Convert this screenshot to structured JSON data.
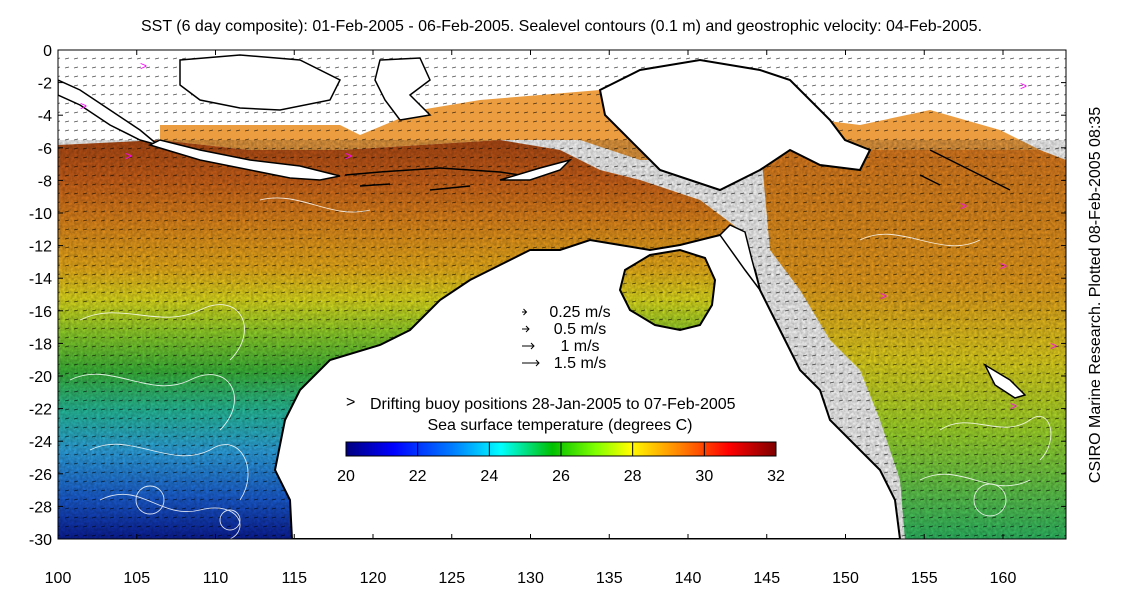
{
  "title": "SST (6 day composite): 01-Feb-2005 - 06-Feb-2005. Sealevel contours (0.1 m) and geostrophic velocity: 04-Feb-2005.",
  "side_credit": "CSIRO Marine Research. Plotted 08-Feb-2005 08:35",
  "map": {
    "lon_range": [
      100,
      164
    ],
    "lat_range": [
      -30,
      0
    ],
    "x_ticks": [
      "100",
      "105",
      "110",
      "115",
      "120",
      "125",
      "130",
      "135",
      "140",
      "145",
      "150",
      "155",
      "160"
    ],
    "y_ticks": [
      "0",
      "-2",
      "-4",
      "-6",
      "-8",
      "-10",
      "-12",
      "-14",
      "-16",
      "-18",
      "-20",
      "-22",
      "-24",
      "-26",
      "-28",
      "-30"
    ]
  },
  "velocity_legend": [
    {
      "label": "0.25 m/s",
      "speed": 0.25
    },
    {
      "label": "0.5 m/s",
      "speed": 0.5
    },
    {
      "label": "1 m/s",
      "speed": 1
    },
    {
      "label": "1.5 m/s",
      "speed": 1.5
    }
  ],
  "buoy_legend": {
    "symbol": ">",
    "label": "Drifting buoy positions 28-Jan-2005 to 07-Feb-2005",
    "color": "#ff00ff"
  },
  "colorbar": {
    "title": "Sea surface temperature (degrees C)",
    "min": 20,
    "max": 32,
    "ticks": [
      "20",
      "22",
      "24",
      "26",
      "28",
      "30",
      "32"
    ],
    "colors": [
      "#00007f",
      "#0000ff",
      "#007fff",
      "#00ffff",
      "#00c000",
      "#7fff00",
      "#ffff00",
      "#ff7f00",
      "#ff0000",
      "#7f0000"
    ]
  },
  "colors": {
    "land": "#ffffff",
    "coast": "#000000",
    "contour": "#ffffff",
    "missing": "#ffffff"
  }
}
